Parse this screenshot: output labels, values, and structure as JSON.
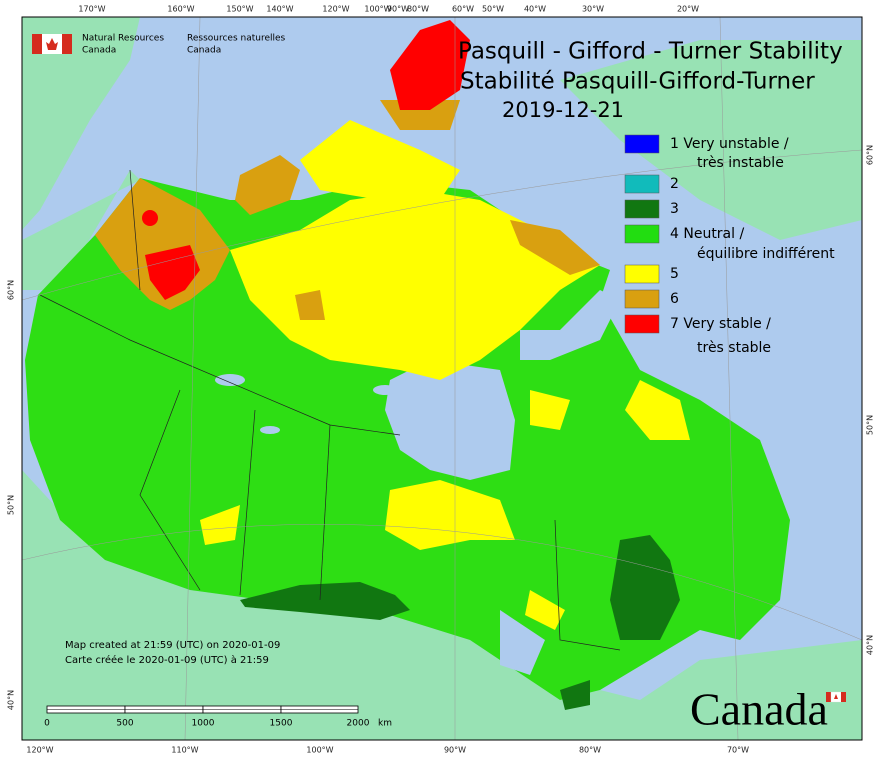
{
  "header": {
    "title_en": "Pasquill - Gifford - Turner Stability",
    "title_fr": "Stabilité Pasquill-Gifford-Turner",
    "date": "2019-12-21"
  },
  "legend": [
    {
      "lines": [
        "1 Very unstable /",
        "très instable"
      ],
      "color": "#0000ff"
    },
    {
      "lines": [
        "2"
      ],
      "color": "#11bbbb"
    },
    {
      "lines": [
        "3"
      ],
      "color": "#117711"
    },
    {
      "lines": [
        "4 Neutral /",
        "équilibre indifférent"
      ],
      "color": "#22dd11"
    },
    {
      "lines": [
        "5"
      ],
      "color": "#ffff00"
    },
    {
      "lines": [
        "6"
      ],
      "color": "#d9a010"
    },
    {
      "lines": [
        "7 Very stable /",
        "très stable"
      ],
      "color": "#ff0000"
    }
  ],
  "agency": {
    "en": [
      "Natural Resources",
      "Canada"
    ],
    "fr": [
      "Ressources naturelles",
      "Canada"
    ]
  },
  "credits": [
    "Map created at 21:59 (UTC) on 2020-01-09",
    "Carte créée le 2020-01-09 (UTC) à 21:59"
  ],
  "scale": {
    "labels": [
      "0",
      "500",
      "1000",
      "1500",
      "2000"
    ],
    "unit": "km"
  },
  "graticule": {
    "top": [
      "170°W",
      "160°W",
      "150°W",
      "140°W",
      "120°W",
      "100°W",
      "90°W",
      "80°W",
      "60°W",
      "50°W",
      "40°W",
      "30°W",
      "20°W"
    ],
    "bottom": [
      "120°W",
      "110°W",
      "100°W",
      "90°W",
      "80°W",
      "70°W"
    ],
    "left": [
      "60°N",
      "50°N",
      "40°N"
    ],
    "right": [
      "60°N",
      "50°N",
      "40°N"
    ]
  },
  "wordmark": "Canada"
}
